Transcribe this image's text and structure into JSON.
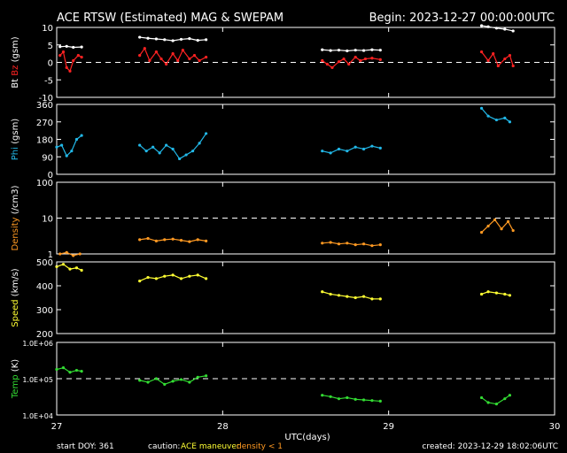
{
  "header": {
    "title": "ACE RTSW (Estimated) MAG & SWEPAM",
    "begin": "Begin: 2023-12-27 00:00:00UTC"
  },
  "footer": {
    "start_doy": "start DOY: 361",
    "caution_label": "caution:",
    "maneuver": "ACE maneuver",
    "density_note": "density < 1",
    "created": "created: 2023-12-29 18:02:06UTC"
  },
  "x_axis": {
    "label": "UTC(days)",
    "range": [
      27,
      30
    ],
    "ticks": [
      {
        "value": 27,
        "label": "27"
      },
      {
        "value": 28,
        "label": "28"
      },
      {
        "value": 29,
        "label": "29"
      },
      {
        "value": 30,
        "label": "30"
      }
    ]
  },
  "colors": {
    "bt": "#ffffff",
    "bz": "#ff2222",
    "phi": "#22b8e8",
    "density": "#ff9922",
    "speed": "#ffff33",
    "temp": "#33dd33",
    "axis": "#ffffff",
    "ref_line": "#ffffff",
    "caution": "#ffff33",
    "density_note": "#ff9922"
  },
  "chart_data": [
    {
      "type": "scatter",
      "ylabel_prefix": "Bt",
      "ylabel_main": "Bz",
      "ylabel_unit": "(gsm)",
      "ylim": [
        -10,
        10
      ],
      "yticks": [
        {
          "value": 10,
          "label": "10"
        },
        {
          "value": 5,
          "label": "5"
        },
        {
          "value": 0,
          "label": "0"
        },
        {
          "value": -5,
          "label": "-5"
        },
        {
          "value": -10,
          "label": "-10"
        }
      ],
      "ref_lines": [
        0
      ],
      "series": [
        {
          "name": "Bt",
          "color_key": "bt",
          "x": [
            27.02,
            27.06,
            27.1,
            27.15,
            27.5,
            27.55,
            27.6,
            27.65,
            27.7,
            27.75,
            27.8,
            27.85,
            27.9,
            28.6,
            28.65,
            28.7,
            28.75,
            28.8,
            28.85,
            28.9,
            28.95,
            29.56,
            29.6,
            29.65,
            29.7,
            29.75
          ],
          "y": [
            4.5,
            4.6,
            4.3,
            4.4,
            7.2,
            6.9,
            6.7,
            6.5,
            6.2,
            6.6,
            6.8,
            6.3,
            6.5,
            3.6,
            3.4,
            3.5,
            3.3,
            3.5,
            3.4,
            3.6,
            3.5,
            10.5,
            10.2,
            9.8,
            9.5,
            9.0
          ]
        },
        {
          "name": "Bz",
          "color_key": "bz",
          "x": [
            27.02,
            27.04,
            27.06,
            27.08,
            27.1,
            27.13,
            27.15,
            27.5,
            27.53,
            27.56,
            27.6,
            27.63,
            27.66,
            27.7,
            27.73,
            27.76,
            27.8,
            27.83,
            27.86,
            27.9,
            28.6,
            28.63,
            28.66,
            28.7,
            28.73,
            28.76,
            28.8,
            28.83,
            28.86,
            28.9,
            28.95,
            29.56,
            29.6,
            29.63,
            29.66,
            29.7,
            29.73,
            29.75
          ],
          "y": [
            2.0,
            3.0,
            -1.5,
            -2.5,
            0.5,
            2.0,
            1.5,
            2.0,
            4.0,
            0.5,
            3.0,
            1.0,
            -0.5,
            2.5,
            0.5,
            3.5,
            1.0,
            2.0,
            0.5,
            1.5,
            0.5,
            -0.5,
            -1.5,
            0.2,
            1.0,
            -0.5,
            1.5,
            0.5,
            1.0,
            1.2,
            0.8,
            3.0,
            0.5,
            2.5,
            -1.0,
            1.0,
            2.0,
            -1.0
          ]
        }
      ]
    },
    {
      "type": "scatter",
      "ylabel_main": "Phi",
      "ylabel_unit": "(gsm)",
      "ylim": [
        0,
        360
      ],
      "yticks": [
        {
          "value": 360,
          "label": "360"
        },
        {
          "value": 270,
          "label": "270"
        },
        {
          "value": 180,
          "label": "180"
        },
        {
          "value": 90,
          "label": "90"
        },
        {
          "value": 0,
          "label": "0"
        }
      ],
      "ref_lines": [],
      "series": [
        {
          "name": "Phi",
          "color_key": "phi",
          "x": [
            27.0,
            27.03,
            27.06,
            27.09,
            27.12,
            27.15,
            27.5,
            27.54,
            27.58,
            27.62,
            27.66,
            27.7,
            27.74,
            27.78,
            27.82,
            27.86,
            27.9,
            28.6,
            28.65,
            28.7,
            28.75,
            28.8,
            28.85,
            28.9,
            28.95,
            29.56,
            29.6,
            29.65,
            29.7,
            29.73
          ],
          "y": [
            140,
            150,
            95,
            120,
            180,
            200,
            150,
            120,
            140,
            110,
            150,
            130,
            80,
            100,
            120,
            160,
            210,
            120,
            110,
            130,
            120,
            140,
            130,
            145,
            135,
            340,
            300,
            280,
            290,
            270
          ]
        }
      ]
    },
    {
      "type": "scatter",
      "ylabel_main": "Density",
      "ylabel_unit": "(/cm3)",
      "log_scale": true,
      "ylim": [
        1,
        100
      ],
      "yticks": [
        {
          "value": 100,
          "label": "100"
        },
        {
          "value": 10,
          "label": "10"
        },
        {
          "value": 1,
          "label": "1"
        }
      ],
      "ref_lines": [
        10
      ],
      "series": [
        {
          "name": "Density",
          "color_key": "density",
          "x": [
            27.02,
            27.06,
            27.1,
            27.14,
            27.5,
            27.55,
            27.6,
            27.65,
            27.7,
            27.75,
            27.8,
            27.85,
            27.9,
            28.6,
            28.65,
            28.7,
            28.75,
            28.8,
            28.85,
            28.9,
            28.95,
            29.56,
            29.6,
            29.64,
            29.68,
            29.72,
            29.75
          ],
          "y": [
            1.0,
            1.1,
            0.9,
            1.0,
            2.5,
            2.7,
            2.3,
            2.5,
            2.6,
            2.4,
            2.2,
            2.5,
            2.3,
            2.0,
            2.1,
            1.9,
            2.0,
            1.8,
            1.9,
            1.7,
            1.8,
            4.0,
            6.0,
            9.0,
            5.0,
            8.0,
            4.5
          ]
        }
      ]
    },
    {
      "type": "scatter",
      "ylabel_main": "Speed",
      "ylabel_unit": "(km/s)",
      "ylim": [
        200,
        500
      ],
      "yticks": [
        {
          "value": 500,
          "label": "500"
        },
        {
          "value": 400,
          "label": "400"
        },
        {
          "value": 300,
          "label": "300"
        },
        {
          "value": 200,
          "label": "200"
        }
      ],
      "ref_lines": [],
      "series": [
        {
          "name": "Speed",
          "color_key": "speed",
          "x": [
            27.0,
            27.04,
            27.08,
            27.12,
            27.15,
            27.5,
            27.55,
            27.6,
            27.65,
            27.7,
            27.75,
            27.8,
            27.85,
            27.9,
            28.6,
            28.65,
            28.7,
            28.75,
            28.8,
            28.85,
            28.9,
            28.95,
            29.56,
            29.6,
            29.65,
            29.7,
            29.73
          ],
          "y": [
            480,
            490,
            470,
            475,
            465,
            420,
            435,
            430,
            440,
            445,
            430,
            440,
            445,
            430,
            375,
            365,
            360,
            355,
            350,
            355,
            345,
            345,
            365,
            375,
            370,
            365,
            360
          ]
        }
      ]
    },
    {
      "type": "scatter",
      "ylabel_main": "Temp",
      "ylabel_unit": "(K)",
      "log_scale": true,
      "ylim": [
        10000,
        1000000
      ],
      "yticks": [
        {
          "value": 1000000,
          "label": "1.0E+06"
        },
        {
          "value": 100000,
          "label": "1.0E+05"
        },
        {
          "value": 10000,
          "label": "1.0E+04"
        }
      ],
      "ref_lines": [
        100000
      ],
      "series": [
        {
          "name": "Temp",
          "color_key": "temp",
          "x": [
            27.0,
            27.04,
            27.08,
            27.12,
            27.15,
            27.5,
            27.55,
            27.6,
            27.65,
            27.7,
            27.75,
            27.8,
            27.85,
            27.9,
            28.6,
            28.65,
            28.7,
            28.75,
            28.8,
            28.85,
            28.9,
            28.95,
            29.56,
            29.6,
            29.65,
            29.7,
            29.73
          ],
          "y": [
            180000,
            200000,
            150000,
            170000,
            160000,
            90000,
            80000,
            100000,
            70000,
            85000,
            95000,
            80000,
            110000,
            120000,
            35000,
            32000,
            28000,
            30000,
            27000,
            26000,
            25000,
            24000,
            30000,
            22000,
            20000,
            28000,
            35000
          ]
        }
      ]
    }
  ]
}
